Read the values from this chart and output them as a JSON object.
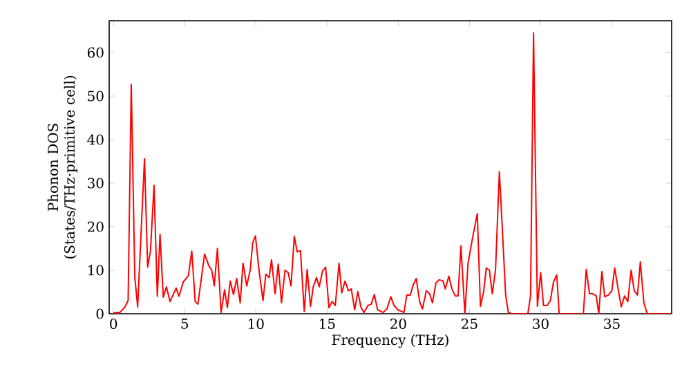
{
  "chart_data": {
    "type": "line",
    "xlabel": "Frequency (THz)",
    "ylabel": "Phonon DOS (States/THz·primitive cell)",
    "color": "#ff0000",
    "x": [
      0,
      0.45,
      0.77,
      1.03,
      1.25,
      1.5,
      1.7,
      2.18,
      2.4,
      2.6,
      2.85,
      3.08,
      3.27,
      3.5,
      3.72,
      3.97,
      4.4,
      4.6,
      4.9,
      5.26,
      5.5,
      5.74,
      5.93,
      6.4,
      6.7,
      6.9,
      7.08,
      7.3,
      7.56,
      7.8,
      8.0,
      8.2,
      8.43,
      8.65,
      8.9,
      9.1,
      9.36,
      9.6,
      9.78,
      9.97,
      10.22,
      10.5,
      10.7,
      10.93,
      11.1,
      11.35,
      11.57,
      11.8,
      12.05,
      12.27,
      12.47,
      12.7,
      12.9,
      13.13,
      13.4,
      13.6,
      13.84,
      14.03,
      14.26,
      14.45,
      14.68,
      14.9,
      15.13,
      15.35,
      15.58,
      15.84,
      16.03,
      16.26,
      16.5,
      16.7,
      16.94,
      17.16,
      17.39,
      17.6,
      17.87,
      18.1,
      18.32,
      18.55,
      18.94,
      19.2,
      19.48,
      19.7,
      19.97,
      20.4,
      20.6,
      20.84,
      21.06,
      21.26,
      21.5,
      21.7,
      21.97,
      22.2,
      22.4,
      22.65,
      22.87,
      23.13,
      23.3,
      23.55,
      23.77,
      24.0,
      24.2,
      24.4,
      24.68,
      24.9,
      25.2,
      25.55,
      25.77,
      26.0,
      26.18,
      26.4,
      26.6,
      26.83,
      27.1,
      27.3,
      27.54,
      27.73,
      27.96,
      29.1,
      29.29,
      29.5,
      29.77,
      30.0,
      30.2,
      30.45,
      30.68,
      30.9,
      31.13,
      31.3,
      33.0,
      33.2,
      33.43,
      33.66,
      33.9,
      34.08,
      34.3,
      34.5,
      34.76,
      35.0,
      35.2,
      35.44,
      35.66,
      35.89,
      36.12,
      36.35,
      36.57,
      36.8,
      37.0,
      37.25,
      37.48,
      39.1
    ],
    "values": [
      0.2,
      0.3,
      1.4,
      3,
      52.7,
      8.3,
      1.6,
      35.6,
      10.7,
      14.5,
      29.5,
      4,
      18.2,
      3.8,
      6.2,
      2.8,
      5.9,
      4,
      7.3,
      8.7,
      14.4,
      2.8,
      2.2,
      13.7,
      11,
      10,
      6.4,
      15,
      0.3,
      5.5,
      1.4,
      7.5,
      4.4,
      8.1,
      2.5,
      11.6,
      6.4,
      10,
      16.3,
      17.9,
      10,
      3,
      9.1,
      8.3,
      12.4,
      4.6,
      11.4,
      2.5,
      10,
      9.4,
      6.4,
      17.8,
      14.2,
      14.5,
      0.5,
      10.2,
      1.7,
      6.2,
      8.3,
      6.2,
      9.8,
      10.7,
      1.4,
      2.8,
      1.9,
      11.6,
      4.8,
      7.5,
      5.3,
      5.7,
      0.9,
      5.1,
      1.4,
      0.3,
      1.9,
      2.2,
      4.4,
      0.9,
      0.3,
      1.1,
      3.9,
      1.9,
      0.9,
      0.3,
      4.3,
      4.3,
      6.7,
      8.1,
      2.8,
      1.1,
      5.3,
      4.6,
      2.5,
      7.1,
      7.8,
      7.6,
      5.7,
      8.6,
      5.7,
      4.1,
      4.1,
      15.6,
      0,
      11.6,
      17.1,
      23,
      1.7,
      5.1,
      10.5,
      10,
      4.6,
      10,
      32.6,
      20.1,
      4.4,
      0.3,
      0,
      0,
      4.1,
      64.5,
      1.7,
      9.4,
      1.9,
      1.9,
      3,
      7.3,
      8.9,
      0,
      0,
      10.2,
      4.6,
      4.6,
      4.1,
      0,
      9.7,
      3.9,
      4.3,
      5.3,
      10.5,
      5.7,
      1.6,
      4.1,
      2.8,
      10,
      5.3,
      4.3,
      11.9,
      2.5,
      0,
      0
    ],
    "xlim": [
      -0.3,
      39.2
    ],
    "ylim": [
      0,
      67.3
    ],
    "xticks": [
      0,
      5,
      10,
      15,
      20,
      25,
      30,
      35
    ],
    "yticks": [
      0,
      10,
      20,
      30,
      40,
      50,
      60
    ]
  }
}
